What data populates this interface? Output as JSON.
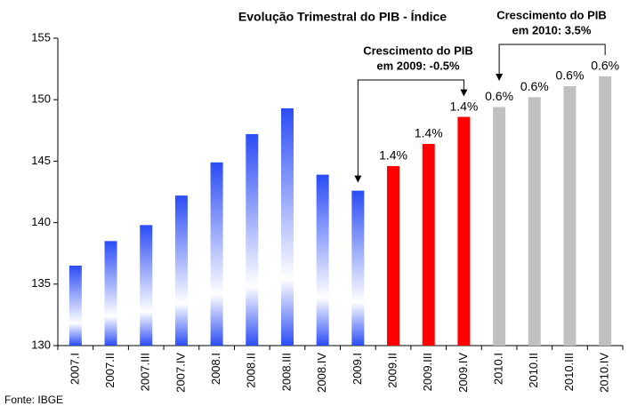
{
  "chart_data": {
    "type": "bar",
    "title": "Evolução Trimestral do PIB - Índice",
    "categories": [
      "2007.I",
      "2007.II",
      "2007.III",
      "2007.IV",
      "2008.I",
      "2008.II",
      "2008.III",
      "2008.IV",
      "2009.I",
      "2009.II",
      "2009.III",
      "2009.IV",
      "2010.I",
      "2010.II",
      "2010.III",
      "2010.IV"
    ],
    "values": [
      136.5,
      138.5,
      139.8,
      142.2,
      144.9,
      147.2,
      149.3,
      143.9,
      142.6,
      144.6,
      146.4,
      148.6,
      149.4,
      150.2,
      151.1,
      151.9
    ],
    "colors": [
      "#2a4cf5",
      "#2a4cf5",
      "#2a4cf5",
      "#2a4cf5",
      "#2a4cf5",
      "#2a4cf5",
      "#2a4cf5",
      "#2a4cf5",
      "#2a4cf5",
      "#ff0000",
      "#ff0000",
      "#ff0000",
      "#c0c0c0",
      "#c0c0c0",
      "#c0c0c0",
      "#c0c0c0"
    ],
    "bar_annotations": [
      null,
      null,
      null,
      null,
      null,
      null,
      null,
      null,
      null,
      "1.4%",
      "1.4%",
      "1.4%",
      "0.6%",
      "0.6%",
      "0.6%",
      "0.6%"
    ],
    "annotations": [
      {
        "lines": [
          "Crescimento do PIB",
          "em 2009: -0.5%"
        ]
      },
      {
        "lines": [
          "Crescimento do PIB",
          "em 2010: 3.5%"
        ]
      }
    ],
    "ylim": [
      130,
      155
    ],
    "yticks": [
      130,
      135,
      140,
      145,
      150,
      155
    ],
    "grid": false,
    "source": "Fonte: IBGE"
  }
}
